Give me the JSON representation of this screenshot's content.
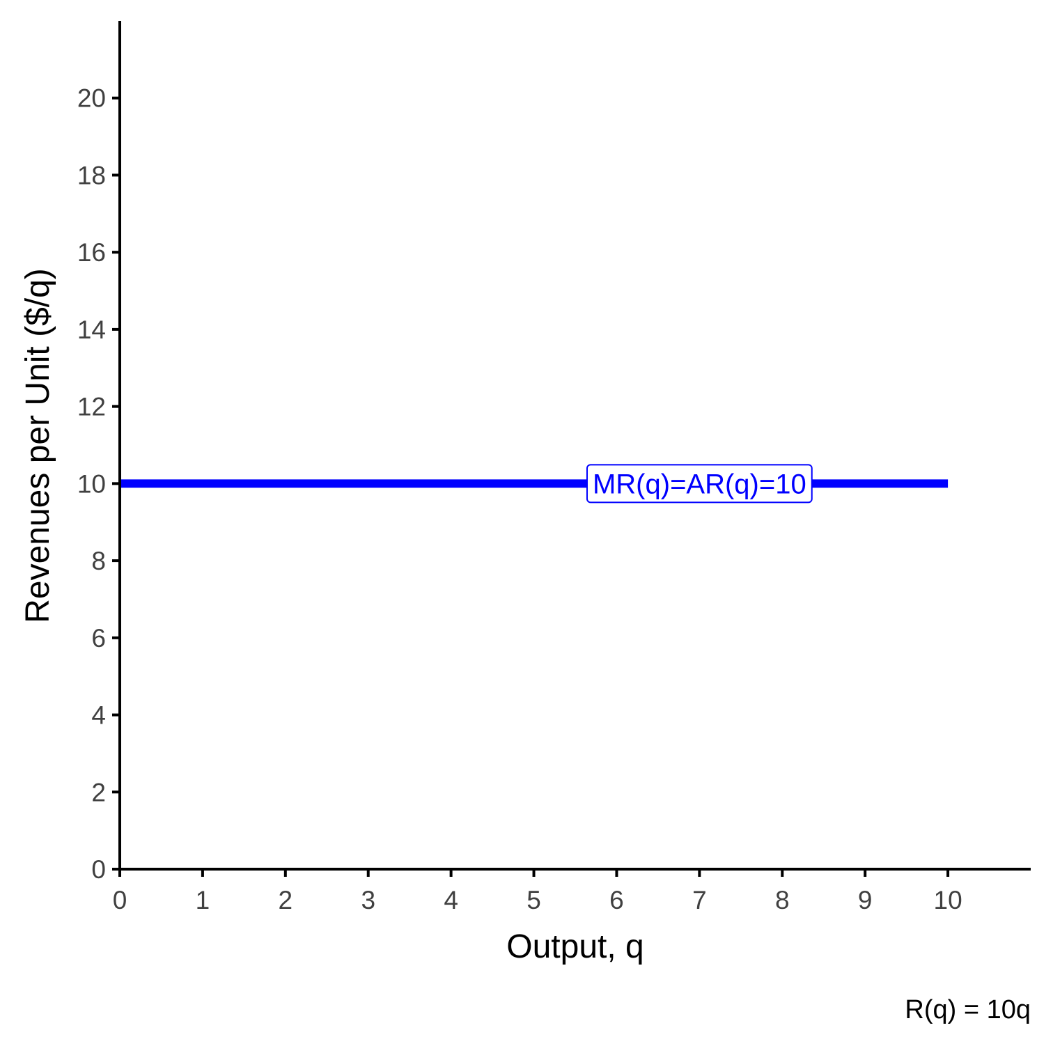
{
  "chart_data": {
    "type": "line",
    "xlabel": "Output, q",
    "ylabel": "Revenues per Unit ($/q)",
    "xlim": [
      0,
      11
    ],
    "ylim": [
      0,
      22
    ],
    "xticks": [
      0,
      1,
      2,
      3,
      4,
      5,
      6,
      7,
      8,
      9,
      10
    ],
    "yticks": [
      0,
      2,
      4,
      6,
      8,
      10,
      12,
      14,
      16,
      18,
      20
    ],
    "grid": false,
    "series": [
      {
        "x": [
          0,
          10
        ],
        "y": [
          10,
          10
        ],
        "color": "#0000ff",
        "label": "MR(q)=AR(q)=10",
        "label_x": 7
      }
    ],
    "caption": "R(q) = 10q"
  }
}
